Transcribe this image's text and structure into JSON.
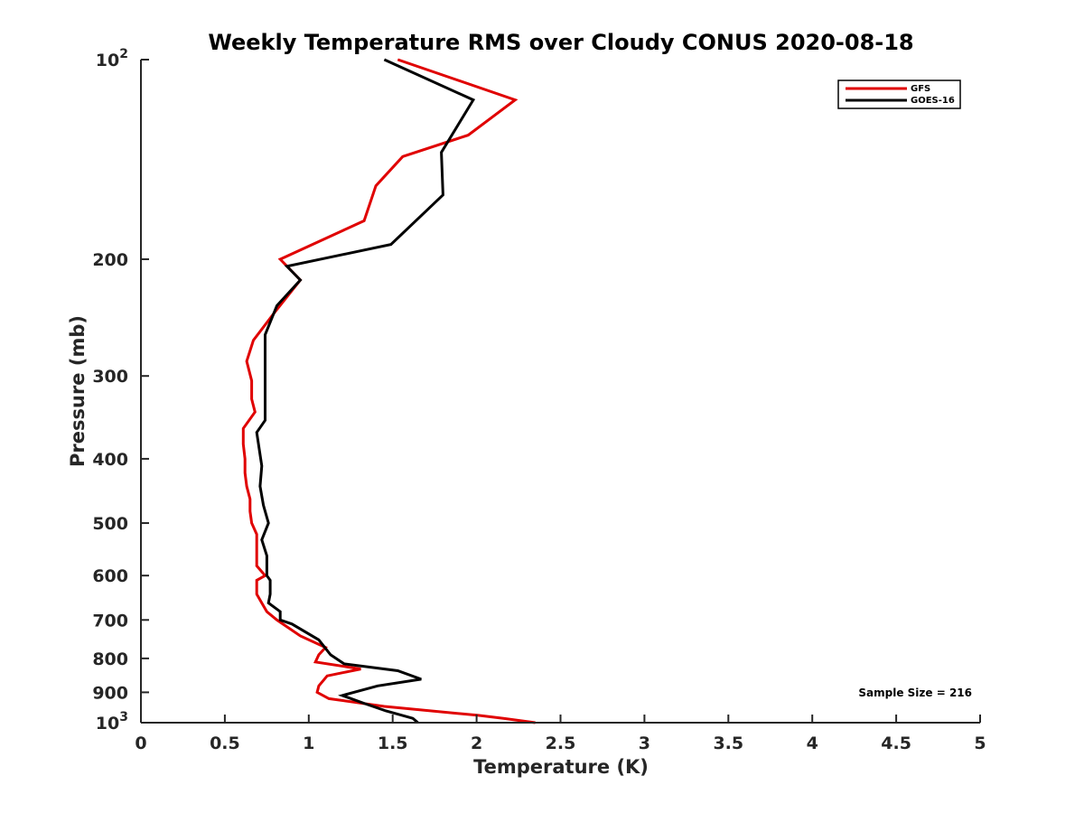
{
  "chart_data": {
    "type": "line",
    "title": "Weekly Temperature RMS over Cloudy CONUS 2020-08-18",
    "xlabel": "Temperature (K)",
    "ylabel": "Pressure (mb)",
    "xlim": [
      0,
      5
    ],
    "ylim": [
      100,
      1000
    ],
    "y_scale": "log",
    "y_reversed": true,
    "grid": false,
    "legend_position": "top-right",
    "x_ticks": [
      {
        "value": 0,
        "label": "0"
      },
      {
        "value": 0.5,
        "label": "0.5"
      },
      {
        "value": 1,
        "label": "1"
      },
      {
        "value": 1.5,
        "label": "1.5"
      },
      {
        "value": 2,
        "label": "2"
      },
      {
        "value": 2.5,
        "label": "2.5"
      },
      {
        "value": 3,
        "label": "3"
      },
      {
        "value": 3.5,
        "label": "3.5"
      },
      {
        "value": 4,
        "label": "4"
      },
      {
        "value": 4.5,
        "label": "4.5"
      },
      {
        "value": 5,
        "label": "5"
      }
    ],
    "y_ticks": [
      {
        "value": 100,
        "base": "10",
        "exp": "2"
      },
      {
        "value": 200,
        "label": "200"
      },
      {
        "value": 300,
        "label": "300"
      },
      {
        "value": 400,
        "label": "400"
      },
      {
        "value": 500,
        "label": "500"
      },
      {
        "value": 600,
        "label": "600"
      },
      {
        "value": 700,
        "label": "700"
      },
      {
        "value": 800,
        "label": "800"
      },
      {
        "value": 900,
        "label": "900"
      },
      {
        "value": 1000,
        "base": "10",
        "exp": "3"
      }
    ],
    "annotation": "Sample Size = 216",
    "series": [
      {
        "name": "GFS",
        "color": "#e00000",
        "x": [
          1.53,
          2.23,
          1.95,
          1.56,
          1.4,
          1.33,
          0.83,
          0.95,
          0.8,
          0.67,
          0.63,
          0.66,
          0.66,
          0.68,
          0.61,
          0.61,
          0.62,
          0.62,
          0.63,
          0.65,
          0.65,
          0.66,
          0.69,
          0.69,
          0.69,
          0.69,
          0.74,
          0.69,
          0.69,
          0.72,
          0.75,
          0.81,
          0.95,
          1.1,
          1.06,
          1.04,
          1.31,
          1.11,
          1.06,
          1.05,
          1.12,
          1.45,
          2.01,
          2.16,
          2.35
        ],
        "y": [
          100,
          115,
          130,
          140,
          155,
          175,
          200,
          215,
          240,
          265,
          285,
          305,
          325,
          340,
          360,
          380,
          400,
          420,
          440,
          460,
          480,
          500,
          520,
          540,
          560,
          580,
          600,
          610,
          640,
          660,
          680,
          700,
          740,
          770,
          790,
          810,
          830,
          850,
          880,
          900,
          920,
          945,
          975,
          985,
          1000
        ]
      },
      {
        "name": "GOES-16",
        "color": "#000000",
        "x": [
          1.45,
          1.98,
          1.79,
          1.8,
          1.49,
          0.87,
          0.95,
          0.81,
          0.74,
          0.74,
          0.74,
          0.74,
          0.69,
          0.72,
          0.71,
          0.73,
          0.76,
          0.72,
          0.75,
          0.75,
          0.77,
          0.77,
          0.76,
          0.83,
          0.83,
          0.9,
          1.06,
          1.13,
          1.21,
          1.53,
          1.67,
          1.41,
          1.2,
          1.33,
          1.46,
          1.62,
          1.65
        ],
        "y": [
          100,
          115,
          138,
          160,
          190,
          205,
          215,
          235,
          260,
          300,
          330,
          350,
          365,
          410,
          440,
          470,
          500,
          530,
          560,
          600,
          610,
          640,
          660,
          680,
          700,
          710,
          750,
          790,
          815,
          835,
          860,
          880,
          910,
          935,
          960,
          985,
          1000
        ]
      }
    ]
  }
}
